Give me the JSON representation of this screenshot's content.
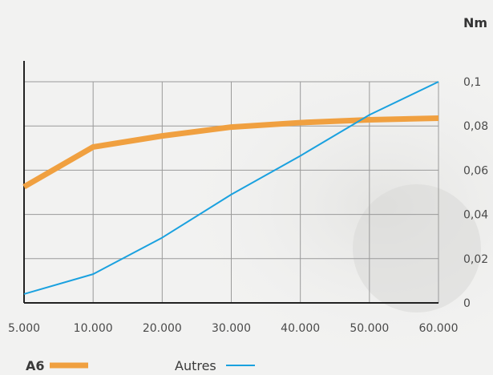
{
  "chart_data": {
    "type": "line",
    "unit": "Nm",
    "categories": [
      "5.000",
      "10.000",
      "20.000",
      "30.000",
      "40.000",
      "50.000",
      "60.000"
    ],
    "ylim": [
      0,
      0.1
    ],
    "y_ticks": [
      "0",
      "0,02",
      "0,04",
      "0,06",
      "0,08",
      "0,1"
    ],
    "y_axis_side": "right",
    "grid": true,
    "legend_placement": "bottom-left",
    "series": [
      {
        "name": "A6",
        "values": [
          0.0525,
          0.0705,
          0.0755,
          0.0795,
          0.0815,
          0.0828,
          0.0835
        ],
        "color": "#f0a040"
      },
      {
        "name": "Autres",
        "values": [
          0.004,
          0.013,
          0.0295,
          0.049,
          0.0665,
          0.085,
          0.1
        ],
        "color": "#1aa1df"
      }
    ]
  }
}
